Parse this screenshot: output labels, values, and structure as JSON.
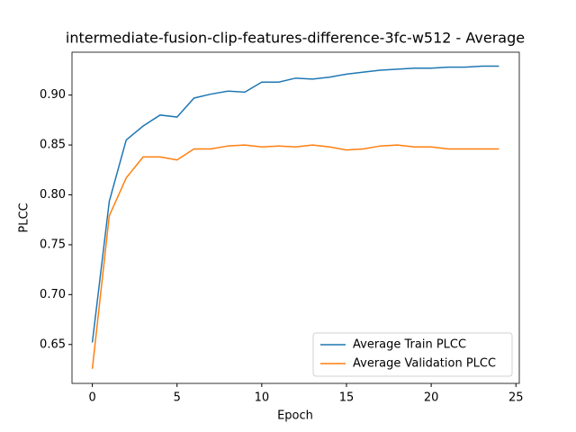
{
  "chart_data": {
    "type": "line",
    "title": "intermediate-fusion-clip-features-difference-3fc-w512 - Average",
    "x_label": "Epoch",
    "y_label": "PLCC",
    "x": [
      0,
      1,
      2,
      3,
      4,
      5,
      6,
      7,
      8,
      9,
      10,
      11,
      12,
      13,
      14,
      15,
      16,
      17,
      18,
      19,
      20,
      21,
      22,
      23,
      24
    ],
    "series": [
      {
        "name": "Average Train PLCC",
        "color": "#1f77b4",
        "values": [
          0.652,
          0.7935,
          0.855,
          0.869,
          0.88,
          0.878,
          0.897,
          0.901,
          0.904,
          0.903,
          0.913,
          0.913,
          0.917,
          0.916,
          0.918,
          0.921,
          0.923,
          0.925,
          0.926,
          0.927,
          0.927,
          0.928,
          0.928,
          0.929,
          0.929
        ]
      },
      {
        "name": "Average Validation PLCC",
        "color": "#ff7f0e",
        "values": [
          0.6256,
          0.779,
          0.817,
          0.838,
          0.838,
          0.835,
          0.846,
          0.846,
          0.849,
          0.85,
          0.848,
          0.849,
          0.848,
          0.85,
          0.848,
          0.845,
          0.846,
          0.849,
          0.85,
          0.848,
          0.848,
          0.846,
          0.846,
          0.846,
          0.846
        ]
      }
    ],
    "xlim": [
      -1.2,
      25.2
    ],
    "xticks": [
      0,
      5,
      10,
      15,
      20,
      25
    ],
    "ylim": [
      0.611,
      0.943
    ],
    "yticks": [
      0.65,
      {
        "value": 0.7,
        "label": "0.70"
      },
      0.75,
      {
        "value": 0.8,
        "label": "0.80"
      },
      0.85,
      {
        "value": 0.9,
        "label": "0.90"
      }
    ],
    "legend": "lower right",
    "grid": false
  }
}
